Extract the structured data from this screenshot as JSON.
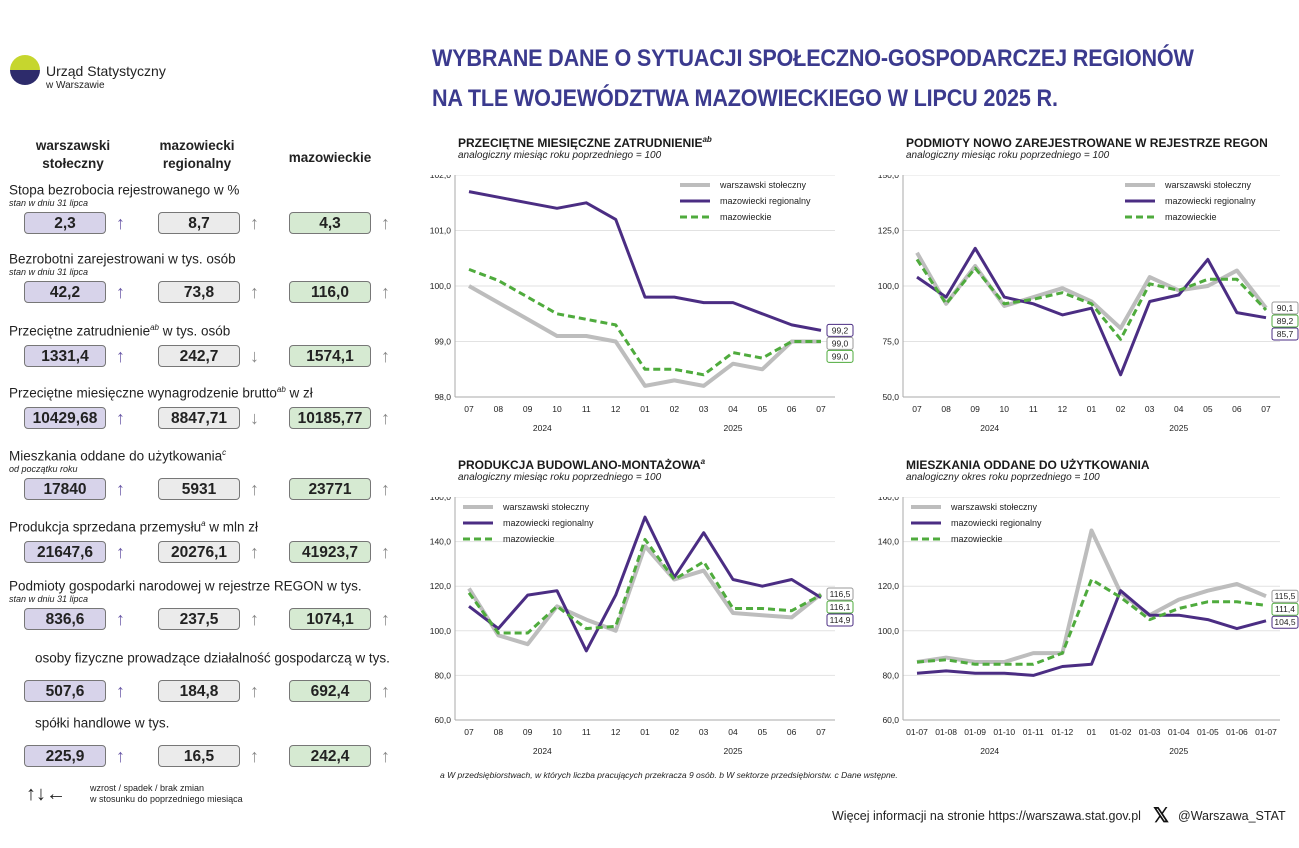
{
  "logo": {
    "name": "Urząd Statystyczny",
    "sub": "w Warszawie"
  },
  "title": {
    "line1": "WYBRANE DANE O SYTUACJI SPOŁECZNO-GOSPODARCZEJ REGIONÓW",
    "line2": "NA TLE WOJEWÓDZTWA MAZOWIECKIEGO W LIPCU 2025 R."
  },
  "columns": {
    "c1": "warszawski\nstołeczny",
    "c2": "mazowiecki\nregionalny",
    "c3": "mazowieckie"
  },
  "indicators": [
    {
      "label": "Stopa bezrobocia rejestrowanego w %",
      "sup": "",
      "label2": "",
      "sub": "stan w dniu 31 lipca",
      "v1": "2,3",
      "a1": "↑",
      "v2": "8,7",
      "a2": "↑",
      "v3": "4,3",
      "a3": "↑"
    },
    {
      "label": "Bezrobotni zarejestrowani w tys. osób",
      "sup": "",
      "label2": "",
      "sub": "stan w dniu 31 lipca",
      "v1": "42,2",
      "a1": "↑",
      "v2": "73,8",
      "a2": "↑",
      "v3": "116,0",
      "a3": "↑"
    },
    {
      "label": "Przeciętne zatrudnienie",
      "sup": "ab",
      "label2": " w tys. osób",
      "sub": "",
      "v1": "1331,4",
      "a1": "↑",
      "v2": "242,7",
      "a2": "↓",
      "v3": "1574,1",
      "a3": "↑"
    },
    {
      "label": "Przeciętne miesięczne wynagrodzenie brutto",
      "sup": "ab",
      "label2": " w zł",
      "sub": "",
      "v1": "10429,68",
      "a1": "↑",
      "v2": "8847,71",
      "a2": "↓",
      "v3": "10185,77",
      "a3": "↑"
    },
    {
      "label": "Mieszkania oddane do użytkowania",
      "sup": "c",
      "label2": "",
      "sub": "od początku roku",
      "v1": "17840",
      "a1": "↑",
      "v2": "5931",
      "a2": "↑",
      "v3": "23771",
      "a3": "↑"
    },
    {
      "label": "Produkcja sprzedana przemysłu",
      "sup": "a",
      "label2": " w mln zł",
      "sub": "",
      "v1": "21647,6",
      "a1": "↑",
      "v2": "20276,1",
      "a2": "↑",
      "v3": "41923,7",
      "a3": "↑"
    },
    {
      "label": "Podmioty gospodarki narodowej w rejestrze REGON w tys.",
      "sup": "",
      "label2": "",
      "sub": "stan w dniu 31 lipca",
      "v1": "836,6",
      "a1": "↑",
      "v2": "237,5",
      "a2": "↑",
      "v3": "1074,1",
      "a3": "↑"
    },
    {
      "label": "osoby fizyczne prowadzące działalność gospodarczą w tys.",
      "sup": "",
      "label2": "",
      "sub": "",
      "v1": "507,6",
      "a1": "↑",
      "v2": "184,8",
      "a2": "↑",
      "v3": "692,4",
      "a3": "↑"
    },
    {
      "label": "spółki handlowe w tys.",
      "sup": "",
      "label2": "",
      "sub": "",
      "v1": "225,9",
      "a1": "↑",
      "v2": "16,5",
      "a2": "↑",
      "v3": "242,4",
      "a3": "↑"
    }
  ],
  "arrow_legend": {
    "symbols": "↑↓←",
    "line1": "wzrost / spadek / brak zmian",
    "line2": "w stosunku do poprzedniego miesiąca"
  },
  "colors": {
    "warszawski": "#bdbdbd",
    "regionalny": "#4b2d83",
    "mazowieckie": "#4fab3d",
    "title": "#3b3a8e"
  },
  "chart_data": [
    {
      "type": "line",
      "title": "PRZECIĘTNE MIESIĘCZNE ZATRUDNIENIE",
      "title_sup": "ab",
      "subtitle": "analogiczny miesiąc roku poprzedniego = 100",
      "categories": [
        "07",
        "08",
        "09",
        "10",
        "11",
        "12",
        "01",
        "02",
        "03",
        "04",
        "05",
        "06",
        "07"
      ],
      "year_labels": [
        "2024",
        "2025"
      ],
      "ylim": [
        98.0,
        102.0
      ],
      "yticks": [
        "98,0",
        "99,0",
        "100,0",
        "101,0",
        "102,0"
      ],
      "legend_position": "top-right",
      "series": [
        {
          "name": "warszawski stołeczny",
          "values": [
            100.0,
            99.7,
            99.4,
            99.1,
            99.1,
            99.0,
            98.2,
            98.3,
            98.2,
            98.6,
            98.5,
            99.0,
            99.0
          ]
        },
        {
          "name": "mazowiecki regionalny",
          "values": [
            101.7,
            101.6,
            101.5,
            101.4,
            101.5,
            101.2,
            99.8,
            99.8,
            99.7,
            99.7,
            99.5,
            99.3,
            99.2
          ]
        },
        {
          "name": "mazowieckie",
          "values": [
            100.3,
            100.1,
            99.8,
            99.5,
            99.4,
            99.3,
            98.5,
            98.5,
            98.4,
            98.8,
            98.7,
            99.0,
            99.0
          ]
        }
      ],
      "end_labels": [
        "99,2",
        "99,0",
        "99,0"
      ]
    },
    {
      "type": "line",
      "title": "PODMIOTY NOWO ZAREJESTROWANE W REJESTRZE REGON",
      "title_sup": "",
      "subtitle": "analogiczny miesiąc roku poprzedniego = 100",
      "categories": [
        "07",
        "08",
        "09",
        "10",
        "11",
        "12",
        "01",
        "02",
        "03",
        "04",
        "05",
        "06",
        "07"
      ],
      "year_labels": [
        "2024",
        "2025"
      ],
      "ylim": [
        50.0,
        150.0
      ],
      "yticks": [
        "50,0",
        "75,0",
        "100,0",
        "125,0",
        "150,0"
      ],
      "legend_position": "top-right",
      "series": [
        {
          "name": "warszawski stołeczny",
          "values": [
            115,
            92,
            109,
            91,
            95,
            99,
            93,
            81,
            104,
            98,
            100,
            107,
            90.1
          ]
        },
        {
          "name": "mazowiecki regionalny",
          "values": [
            104,
            95,
            117,
            95,
            92,
            87,
            90,
            60,
            93,
            96,
            112,
            88,
            85.7
          ]
        },
        {
          "name": "mazowieckie",
          "values": [
            112,
            92,
            108,
            92,
            94,
            97,
            92,
            76,
            101,
            98,
            103,
            103,
            89.2
          ]
        }
      ],
      "end_labels": [
        "90,1",
        "89,2",
        "85,7"
      ]
    },
    {
      "type": "line",
      "title": "PRODUKCJA BUDOWLANO-MONTAŻOWA",
      "title_sup": "a",
      "subtitle": "analogiczny miesiąc roku poprzedniego = 100",
      "categories": [
        "07",
        "08",
        "09",
        "10",
        "11",
        "12",
        "01",
        "02",
        "03",
        "04",
        "05",
        "06",
        "07"
      ],
      "year_labels": [
        "2024",
        "2025"
      ],
      "ylim": [
        60.0,
        160.0
      ],
      "yticks": [
        "60,0",
        "80,0",
        "100,0",
        "120,0",
        "140,0",
        "160,0"
      ],
      "legend_position": "top-left",
      "series": [
        {
          "name": "warszawski stołeczny",
          "values": [
            119,
            98,
            94,
            111,
            105,
            100,
            138,
            123,
            127,
            108,
            107,
            106,
            116.5
          ]
        },
        {
          "name": "mazowiecki regionalny",
          "values": [
            111,
            101,
            116,
            118,
            91,
            116,
            151,
            124,
            144,
            123,
            120,
            123,
            114.9
          ]
        },
        {
          "name": "mazowieckie",
          "values": [
            117,
            99,
            99,
            111,
            101,
            102,
            141,
            123,
            131,
            110,
            110,
            109,
            116.1
          ]
        }
      ],
      "end_labels": [
        "116,5",
        "116,1",
        "114,9"
      ]
    },
    {
      "type": "line",
      "title": "MIESZKANIA ODDANE DO UŻYTKOWANIA",
      "title_sup": "",
      "subtitle": "analogiczny okres roku poprzedniego = 100",
      "categories": [
        "01-07",
        "01-08",
        "01-09",
        "01-10",
        "01-11",
        "01-12",
        "01",
        "01-02",
        "01-03",
        "01-04",
        "01-05",
        "01-06",
        "01-07"
      ],
      "year_labels": [
        "2024",
        "2025"
      ],
      "ylim": [
        60.0,
        160.0
      ],
      "yticks": [
        "60,0",
        "80,0",
        "100,0",
        "120,0",
        "140,0",
        "160,0"
      ],
      "legend_position": "top-left",
      "series": [
        {
          "name": "warszawski stołeczny",
          "values": [
            86,
            88,
            86,
            86,
            90,
            90,
            145,
            117,
            107,
            114,
            118,
            121,
            115.5
          ]
        },
        {
          "name": "mazowiecki regionalny",
          "values": [
            81,
            82,
            81,
            81,
            80,
            84,
            85,
            118,
            107,
            107,
            105,
            101,
            104.5
          ]
        },
        {
          "name": "mazowieckie",
          "values": [
            86,
            87,
            85,
            85,
            85,
            90,
            123,
            115,
            105,
            110,
            113,
            113,
            111.4
          ]
        }
      ],
      "end_labels": [
        "115,5",
        "111,4",
        "104,5"
      ]
    }
  ],
  "footnote": "a W przedsiębiorstwach, w których liczba pracujących przekracza 9 osób.   b W sektorze przedsiębiorstw.   c Dane wstępne.",
  "website": "Więcej informacji na stronie https://warszawa.stat.gov.pl",
  "twitter": "@Warszawa_STAT",
  "twitter_icon": "x-logo"
}
